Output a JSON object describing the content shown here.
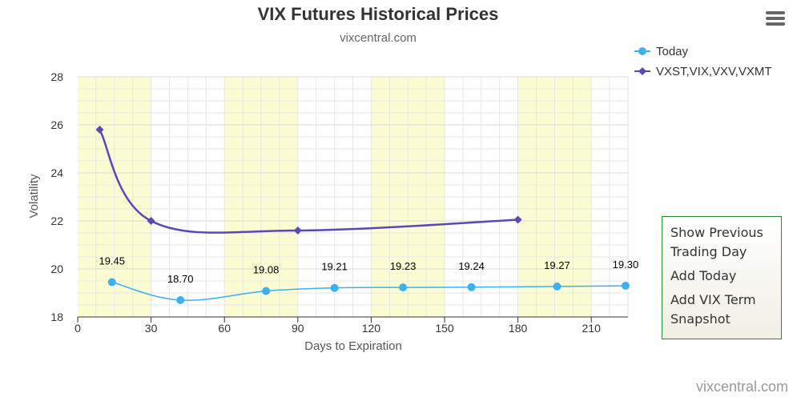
{
  "chart_data": {
    "type": "line",
    "title": "VIX Futures Historical Prices",
    "subtitle": "vixcentral.com",
    "xlabel": "Days to Expiration",
    "ylabel": "Volatility",
    "xlim": [
      0,
      225
    ],
    "ylim": [
      18,
      28
    ],
    "xticks": [
      0,
      30,
      60,
      90,
      120,
      150,
      180,
      210
    ],
    "yticks": [
      18,
      20,
      22,
      24,
      26,
      28
    ],
    "bands": [
      [
        0,
        30
      ],
      [
        60,
        90
      ],
      [
        120,
        150
      ],
      [
        180,
        210
      ]
    ],
    "grid": true,
    "legend_position": "top-right",
    "credits": "vixcentral.com",
    "series": [
      {
        "name": "Today",
        "color": "#3db0f0",
        "marker": "circle",
        "x": [
          14,
          42,
          77,
          105,
          133,
          161,
          196,
          224
        ],
        "y": [
          19.45,
          18.7,
          19.08,
          19.21,
          19.23,
          19.24,
          19.27,
          19.3
        ],
        "labels": [
          "19.45",
          "18.70",
          "19.08",
          "19.21",
          "19.23",
          "19.24",
          "19.27",
          "19.30"
        ]
      },
      {
        "name": "VXST,VIX,VXV,VXMT",
        "color": "#5b47b8",
        "marker": "diamond",
        "x": [
          9,
          30,
          90,
          180
        ],
        "y": [
          25.8,
          22.0,
          21.6,
          22.05
        ]
      }
    ]
  },
  "menu": {
    "items": [
      "Show Previous Trading Day",
      "Add Today",
      "Add VIX Term Snapshot"
    ]
  }
}
